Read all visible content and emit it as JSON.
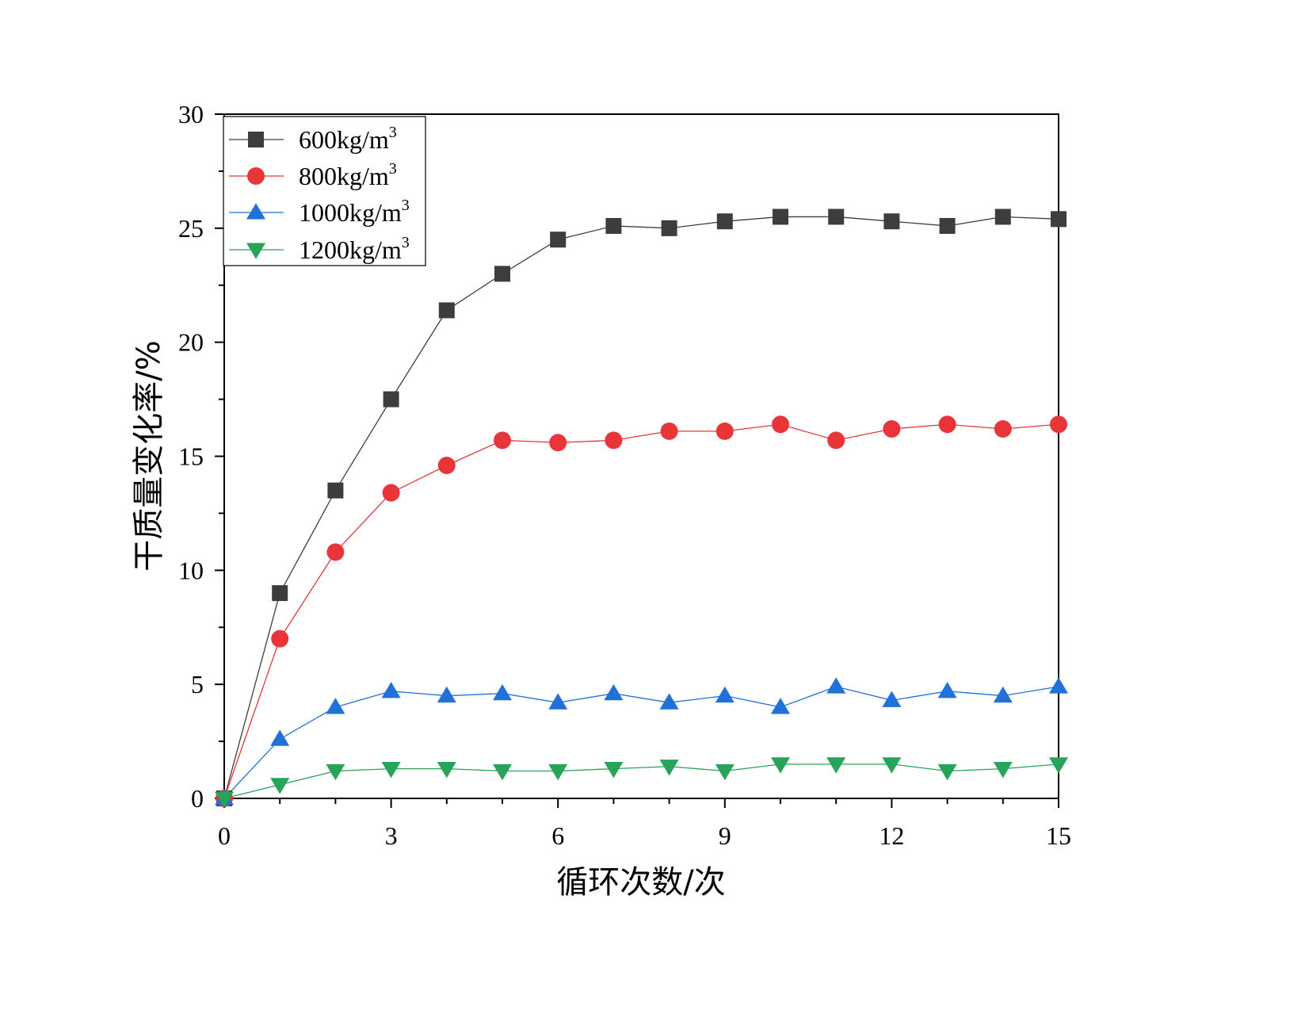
{
  "chart_data": {
    "type": "line",
    "title": "",
    "xlabel": "循环次数/次",
    "ylabel": "干质量变化率/%",
    "xlim": [
      0,
      15
    ],
    "ylim": [
      0,
      30
    ],
    "xticks": [
      "0",
      "3",
      "6",
      "9",
      "12",
      "15"
    ],
    "yticks": [
      "0",
      "5",
      "10",
      "15",
      "20",
      "25",
      "30"
    ],
    "grid": false,
    "legend_position": "top-left",
    "x": [
      0,
      1,
      2,
      3,
      4,
      5,
      6,
      7,
      8,
      9,
      10,
      11,
      12,
      13,
      14,
      15
    ],
    "series": [
      {
        "name": "600kg/m",
        "name_sup": "3",
        "marker": "square",
        "color": "#3d3d3d",
        "values": [
          0,
          9.0,
          13.5,
          17.5,
          21.4,
          23.0,
          24.5,
          25.1,
          25.0,
          25.3,
          25.5,
          25.5,
          25.3,
          25.1,
          25.5,
          25.4
        ]
      },
      {
        "name": "800kg/m",
        "name_sup": "3",
        "marker": "circle",
        "color": "#e8353a",
        "values": [
          0,
          7.0,
          10.8,
          13.4,
          14.6,
          15.7,
          15.6,
          15.7,
          16.1,
          16.1,
          16.4,
          15.7,
          16.2,
          16.4,
          16.2,
          16.4
        ]
      },
      {
        "name": "1000kg/m",
        "name_sup": "3",
        "marker": "triangle-up",
        "color": "#2271d8",
        "values": [
          0,
          2.6,
          4.0,
          4.7,
          4.5,
          4.6,
          4.2,
          4.6,
          4.2,
          4.5,
          4.0,
          4.9,
          4.3,
          4.7,
          4.5,
          4.9
        ]
      },
      {
        "name": "1200kg/m",
        "name_sup": "3",
        "marker": "triangle-down",
        "color": "#27a35a",
        "values": [
          0,
          0.6,
          1.2,
          1.3,
          1.3,
          1.2,
          1.2,
          1.3,
          1.4,
          1.2,
          1.5,
          1.5,
          1.5,
          1.2,
          1.3,
          1.5
        ]
      }
    ]
  }
}
